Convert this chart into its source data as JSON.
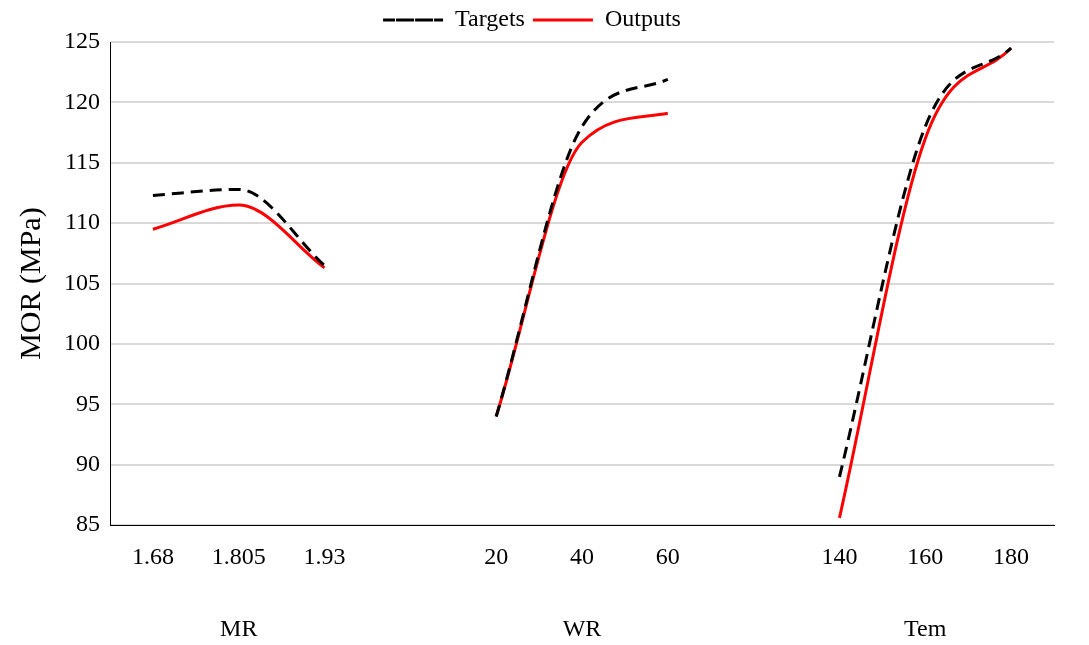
{
  "chart_data": {
    "type": "line",
    "ylabel": "MOR (MPa)",
    "categories": [
      "1.68",
      "1.805",
      "1.93",
      null,
      "20",
      "40",
      "60",
      null,
      "140",
      "160",
      "180"
    ],
    "series": [
      {
        "name": "Targets",
        "color": "#000000",
        "line_style": "dashed",
        "values": [
          112.3,
          112.8,
          106.5,
          null,
          94,
          118,
          121.9,
          null,
          89,
          118,
          124.5
        ]
      },
      {
        "name": "Outputs",
        "color": "#ff0000",
        "line_style": "solid",
        "values": [
          109.5,
          111.5,
          106.3,
          null,
          94,
          116.7,
          119.1,
          null,
          85.6,
          117,
          124.5
        ]
      }
    ],
    "ylim": [
      85,
      125
    ],
    "yticks": [
      85,
      90,
      95,
      100,
      105,
      110,
      115,
      120,
      125
    ],
    "grid": "y",
    "legend": "top",
    "marker": "none",
    "annotations": [
      "MR",
      "WR",
      "Tem"
    ]
  }
}
